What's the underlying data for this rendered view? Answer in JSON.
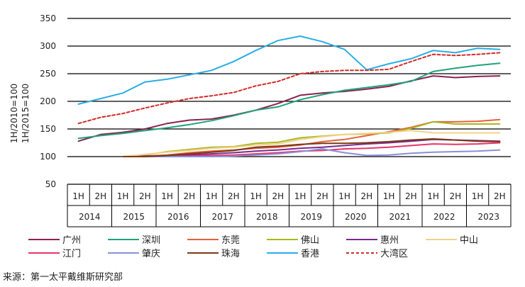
{
  "chart_data": {
    "type": "line",
    "title": "",
    "ylabel_lines": [
      "1H/2010=100",
      "1H/2015=100"
    ],
    "ylim": [
      50,
      350
    ],
    "yticks": [
      "50",
      "100",
      "150",
      "200",
      "250",
      "300",
      "350"
    ],
    "half_labels": [
      "1H",
      "2H",
      "1H",
      "2H",
      "1H",
      "2H",
      "1H",
      "2H",
      "1H",
      "2H",
      "1H",
      "2H",
      "1H",
      "2H",
      "1H",
      "2H",
      "1H",
      "2H",
      "1H",
      "2H"
    ],
    "years": [
      "2014",
      "2015",
      "2016",
      "2017",
      "2018",
      "2019",
      "2020",
      "2021",
      "2022",
      "2023"
    ],
    "grid": true,
    "legend_position": "bottom",
    "series": [
      {
        "name": "广州",
        "color": "#8B2252",
        "dash": false,
        "values": [
          128,
          140,
          144,
          150,
          160,
          166,
          168,
          175,
          184,
          196,
          211,
          215,
          218,
          222,
          227,
          237,
          246,
          243,
          245,
          246
        ]
      },
      {
        "name": "深圳",
        "color": "#1FA37A",
        "dash": false,
        "values": [
          133,
          138,
          142,
          147,
          152,
          158,
          165,
          174,
          184,
          190,
          203,
          212,
          220,
          225,
          230,
          236,
          254,
          260,
          265,
          269
        ]
      },
      {
        "name": "东莞",
        "color": "#E8603C",
        "dash": false,
        "values": [
          null,
          null,
          100,
          101,
          103,
          107,
          110,
          112,
          115,
          117,
          121,
          127,
          131,
          138,
          145,
          153,
          163,
          163,
          164,
          167
        ]
      },
      {
        "name": "佛山",
        "color": "#A8B820",
        "dash": false,
        "values": [
          null,
          null,
          100,
          103,
          109,
          113,
          117,
          118,
          124,
          126,
          134,
          137,
          140,
          141,
          143,
          151,
          163,
          159,
          159,
          159
        ]
      },
      {
        "name": "惠州",
        "color": "#7B2A8E",
        "dash": false,
        "values": [
          null,
          null,
          100,
          101,
          101,
          103,
          105,
          107,
          110,
          112,
          115,
          117,
          120,
          123,
          125,
          128,
          131,
          130,
          129,
          128
        ]
      },
      {
        "name": "中山",
        "color": "#F2D28A",
        "dash": false,
        "values": [
          null,
          null,
          100,
          104,
          108,
          111,
          115,
          117,
          121,
          123,
          131,
          136,
          140,
          142,
          144,
          147,
          143,
          143,
          143,
          143
        ]
      },
      {
        "name": "江门",
        "color": "#E8336A",
        "dash": false,
        "values": [
          null,
          null,
          100,
          100,
          100,
          101,
          102,
          103,
          105,
          107,
          110,
          111,
          114,
          115,
          117,
          120,
          123,
          122,
          123,
          125
        ]
      },
      {
        "name": "肇庆",
        "color": "#8A8FD8",
        "dash": false,
        "values": [
          null,
          null,
          100,
          100,
          100,
          100,
          100,
          101,
          103,
          105,
          109,
          114,
          107,
          102,
          103,
          106,
          108,
          109,
          110,
          112
        ]
      },
      {
        "name": "珠海",
        "color": "#7A3A14",
        "dash": false,
        "values": [
          null,
          null,
          100,
          100,
          102,
          105,
          108,
          111,
          117,
          119,
          122,
          124,
          124,
          125,
          127,
          130,
          132,
          130,
          128,
          127
        ]
      },
      {
        "name": "香港",
        "color": "#2AAEE6",
        "dash": false,
        "values": [
          195,
          205,
          215,
          235,
          240,
          248,
          256,
          272,
          292,
          310,
          318,
          308,
          294,
          257,
          268,
          277,
          292,
          288,
          296,
          294
        ]
      },
      {
        "name": "大湾区",
        "color": "#D62828",
        "dash": true,
        "values": [
          160,
          171,
          178,
          188,
          197,
          205,
          210,
          216,
          228,
          236,
          250,
          254,
          256,
          256,
          258,
          272,
          285,
          283,
          285,
          288
        ]
      }
    ]
  },
  "source": "来源：第一太平戴维斯研究部"
}
